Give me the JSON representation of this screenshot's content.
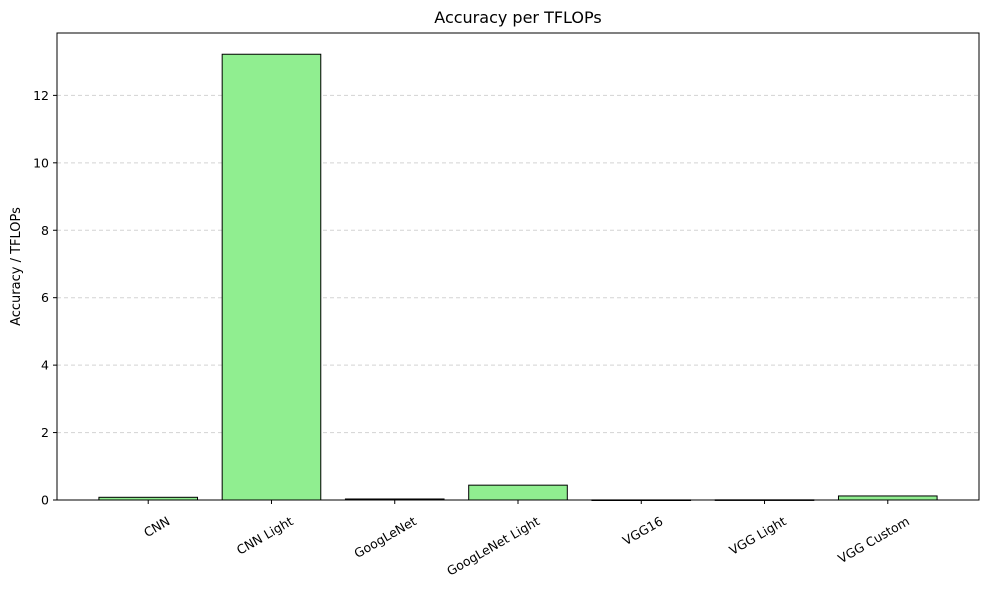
{
  "chart_data": {
    "type": "bar",
    "title": "Accuracy per TFLOPs",
    "xlabel": "",
    "ylabel": "Accuracy / TFLOPs",
    "categories": [
      "CNN",
      "CNN Light",
      "GoogLeNet",
      "GoogLeNet Light",
      "VGG16",
      "VGG Light",
      "VGG Custom"
    ],
    "values": [
      0.08,
      13.22,
      0.03,
      0.44,
      0.003,
      0.005,
      0.12
    ],
    "ylim": [
      0,
      13.85
    ],
    "yticks": [
      0,
      2,
      4,
      6,
      8,
      10,
      12
    ],
    "grid": "y-dashed",
    "bar_color": "#90ee90",
    "bar_edge_color": "#000000",
    "grid_color": "#d3d3d3"
  }
}
